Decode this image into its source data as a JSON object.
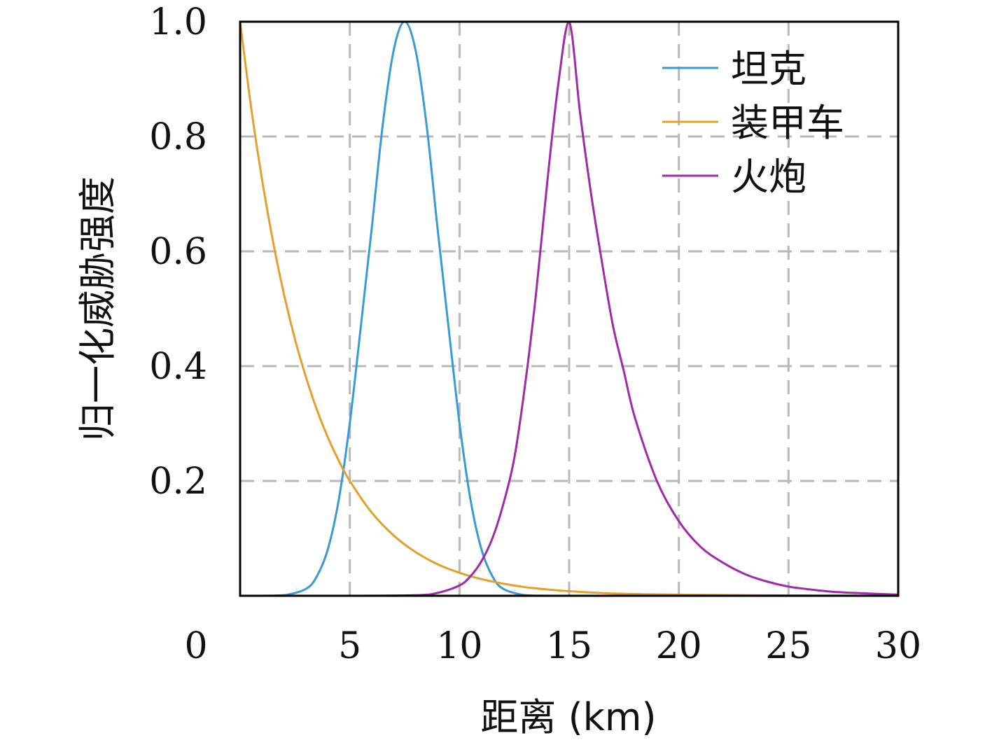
{
  "chart_data": {
    "type": "line",
    "title": "",
    "xlabel": "距离 (km)",
    "ylabel": "归一化威胁强度",
    "xlim": [
      0,
      30
    ],
    "ylim": [
      0,
      1.0
    ],
    "x_ticks": [
      {
        "value": 0,
        "label": "0"
      },
      {
        "value": 5,
        "label": "5"
      },
      {
        "value": 10,
        "label": "10"
      },
      {
        "value": 15,
        "label": "15"
      },
      {
        "value": 20,
        "label": "20"
      },
      {
        "value": 25,
        "label": "25"
      },
      {
        "value": 30,
        "label": "30"
      }
    ],
    "y_ticks": [
      {
        "value": 0.2,
        "label": "0.2"
      },
      {
        "value": 0.4,
        "label": "0.4"
      },
      {
        "value": 0.6,
        "label": "0.6"
      },
      {
        "value": 0.8,
        "label": "0.8"
      },
      {
        "value": 1.0,
        "label": "1.0"
      }
    ],
    "grid": true,
    "legend_position": "top-right",
    "series": [
      {
        "name": "坦克",
        "color": "#3a9ad6",
        "x": [
          0,
          1,
          2,
          3,
          3.5,
          4,
          4.5,
          5,
          5.5,
          6,
          6.5,
          7,
          7.5,
          8,
          8.5,
          9,
          9.5,
          10,
          10.5,
          11,
          11.5,
          12,
          13,
          14,
          15,
          20,
          25,
          30
        ],
        "y": [
          0,
          0,
          0.001,
          0.012,
          0.034,
          0.081,
          0.168,
          0.301,
          0.468,
          0.64,
          0.82,
          0.95,
          1.0,
          0.95,
          0.82,
          0.64,
          0.468,
          0.301,
          0.168,
          0.081,
          0.034,
          0.012,
          0.001,
          0,
          0,
          0,
          0,
          0
        ]
      },
      {
        "name": "装甲车",
        "color": "#e3a12c",
        "x": [
          0,
          0.5,
          1,
          1.5,
          2,
          2.5,
          3,
          3.5,
          4,
          4.5,
          5,
          6,
          7,
          8,
          9,
          10,
          11,
          12,
          13,
          14,
          15,
          17,
          20,
          23,
          26,
          30
        ],
        "y": [
          1.0,
          0.851,
          0.725,
          0.617,
          0.525,
          0.447,
          0.381,
          0.324,
          0.276,
          0.235,
          0.2,
          0.145,
          0.105,
          0.076,
          0.055,
          0.04,
          0.029,
          0.021,
          0.015,
          0.011,
          0.008,
          0.004,
          0.002,
          0.001,
          0.0005,
          0.0002
        ]
      },
      {
        "name": "火炮",
        "color": "#a02aa7",
        "x": [
          0,
          5,
          8,
          9,
          10,
          10.5,
          11,
          11.5,
          12,
          12.5,
          13,
          13.5,
          14,
          14.5,
          15,
          15.5,
          16,
          16.5,
          17,
          17.5,
          18,
          19,
          20,
          21,
          22,
          23,
          24,
          25,
          26,
          27,
          28,
          30
        ],
        "y": [
          0,
          0,
          0.001,
          0.005,
          0.018,
          0.034,
          0.06,
          0.1,
          0.16,
          0.24,
          0.37,
          0.53,
          0.72,
          0.89,
          1.0,
          0.84,
          0.7,
          0.58,
          0.47,
          0.39,
          0.31,
          0.2,
          0.13,
          0.085,
          0.058,
          0.038,
          0.025,
          0.016,
          0.011,
          0.007,
          0.005,
          0.002
        ]
      }
    ]
  }
}
